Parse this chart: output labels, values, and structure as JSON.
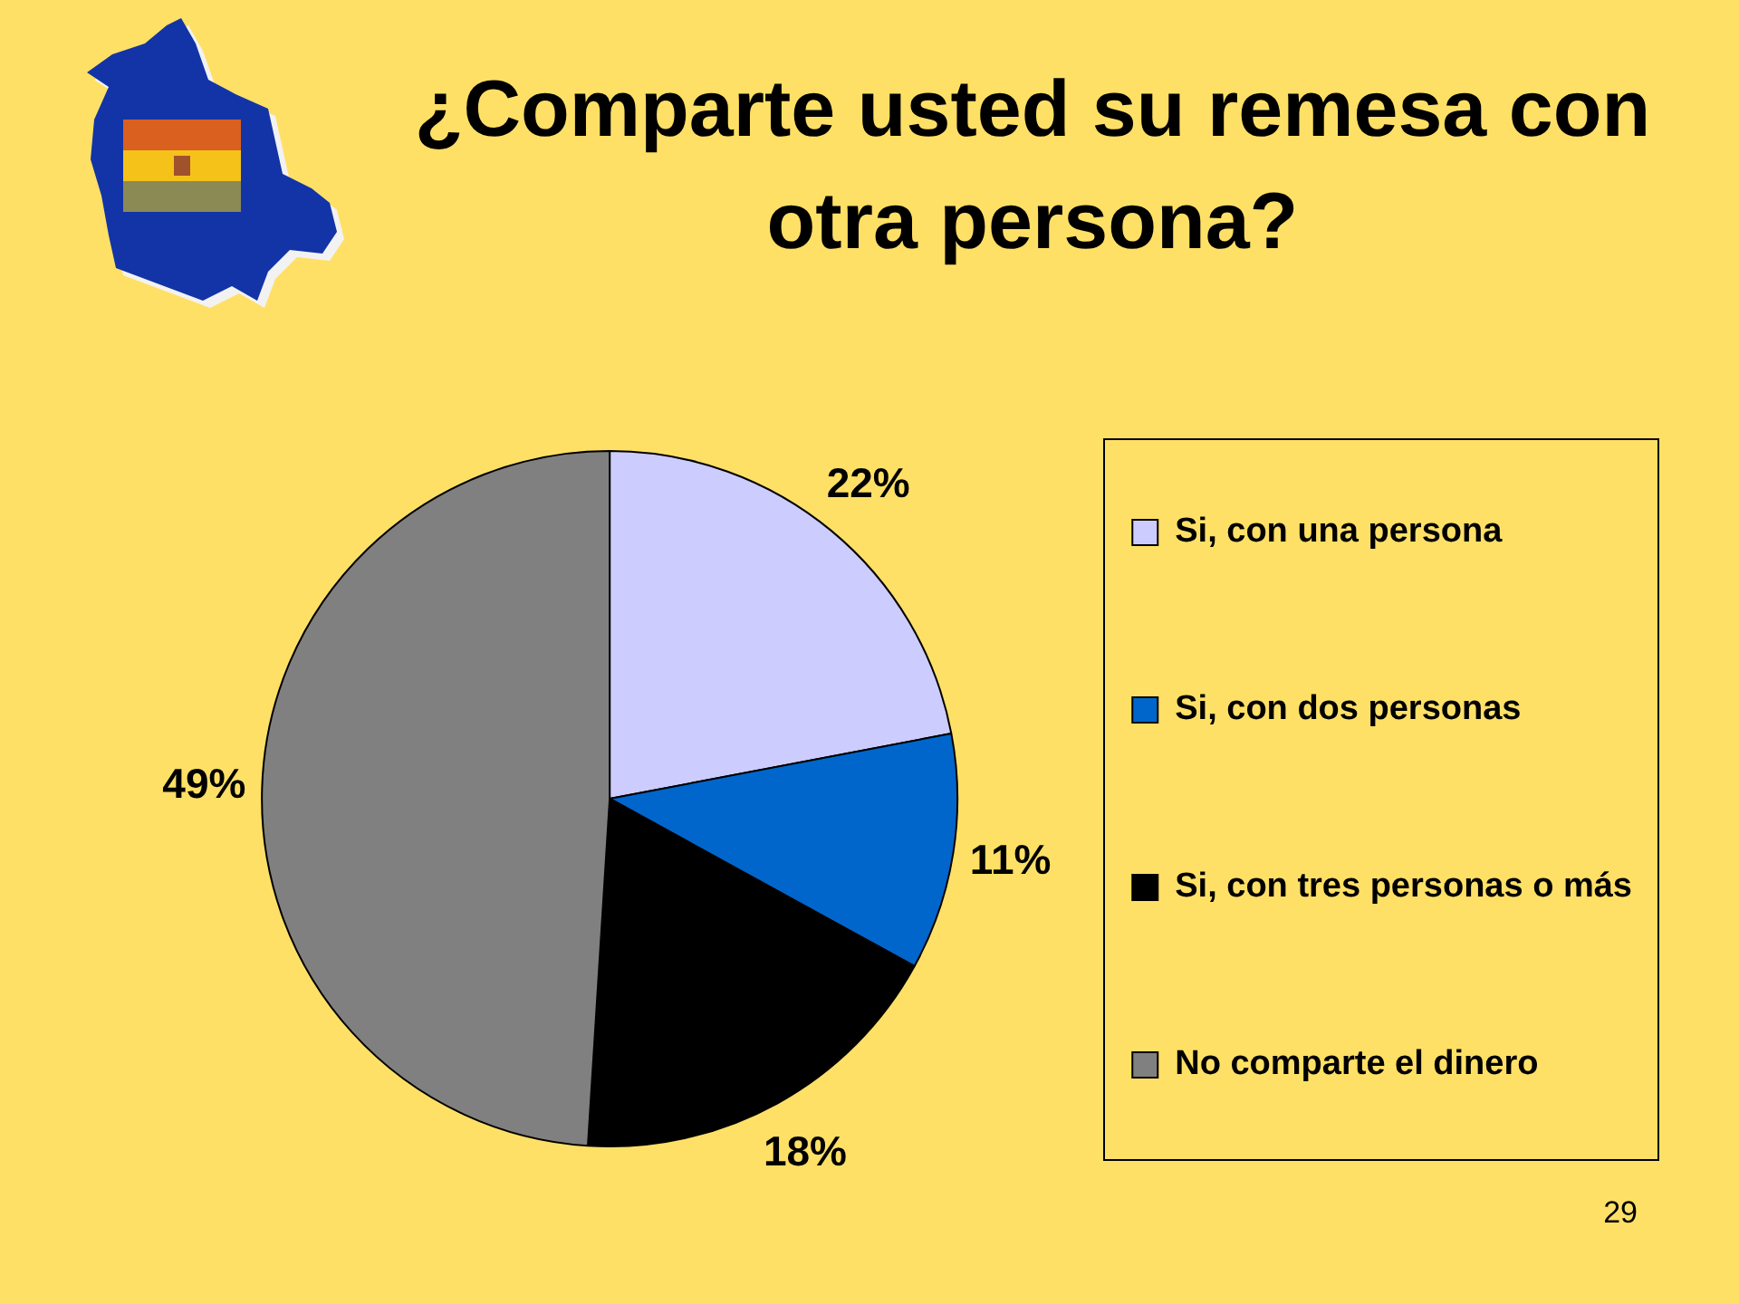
{
  "chart_data": {
    "type": "pie",
    "title": "¿Comparte usted su remesa con otra persona?",
    "categories": [
      "Si, con una persona",
      "Si, con dos personas",
      "Si, con tres personas o más",
      "No comparte el dinero"
    ],
    "values": [
      22,
      11,
      18,
      49
    ],
    "colors": [
      "#ccccff",
      "#0066cc",
      "#000000",
      "#808080"
    ],
    "value_labels": [
      "22%",
      "11%",
      "18%",
      "49%"
    ],
    "legend": "right",
    "annotations": [
      "29"
    ]
  }
}
